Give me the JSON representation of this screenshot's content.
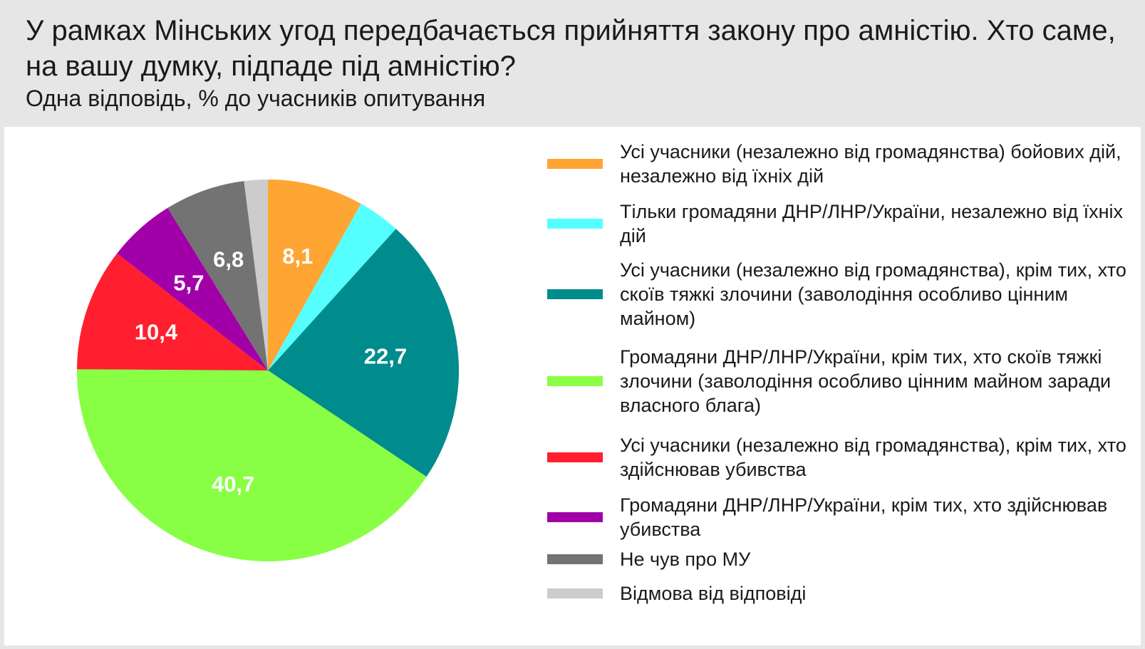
{
  "header": {
    "title": "У рамках Мінських угод передбачається прийняття закону про амністію. Хто саме, на вашу думку, підпаде під амністію?",
    "subtitle": "Одна відповідь, % до учасників опитування"
  },
  "chart_data": {
    "type": "pie",
    "title": "У рамках Мінських угод передбачається прийняття закону про амністію. Хто саме, на вашу думку, підпаде під амністію?",
    "subtitle": "Одна відповідь, % до учасників опитування",
    "legend_position": "right",
    "start": "top, clockwise",
    "slices": [
      {
        "label": "Усі учасники (незалежно від громадянства) бойових дій, незалежно від їхніх дій",
        "value": 8.1,
        "display": "8,1",
        "color": "#ffa533"
      },
      {
        "label": "Тільки громадяни ДНР/ЛНР/України, незалежно від їхніх дій",
        "value": 3.6,
        "display": "",
        "color": "#55ffff"
      },
      {
        "label": "Усі учасники (незалежно від громадянства), крім тих, хто скоїв тяжкі злочини (заволодіння особливо цінним майном)",
        "value": 22.7,
        "display": "22,7",
        "color": "#008c8c"
      },
      {
        "label": "Громадяни ДНР/ЛНР/України, крім тих, хто скоїв тяжкі злочини (заволодіння особливо цінним майном заради власного блага)",
        "value": 40.7,
        "display": "40,7",
        "color": "#88ff44"
      },
      {
        "label": "Усі учасники (незалежно від громадянства), крім тих, хто здійснював убивства",
        "value": 10.4,
        "display": "10,4",
        "color": "#ff1f2e"
      },
      {
        "label": "Громадяни ДНР/ЛНР/України, крім тих, хто здійснював убивства",
        "value": 5.7,
        "display": "5,7",
        "color": "#a100a8"
      },
      {
        "label": "Не чув про МУ",
        "value": 6.8,
        "display": "6,8",
        "color": "#737373"
      },
      {
        "label": "Відмова від відповіді",
        "value": 2.0,
        "display": "",
        "color": "#cccccc"
      }
    ]
  }
}
